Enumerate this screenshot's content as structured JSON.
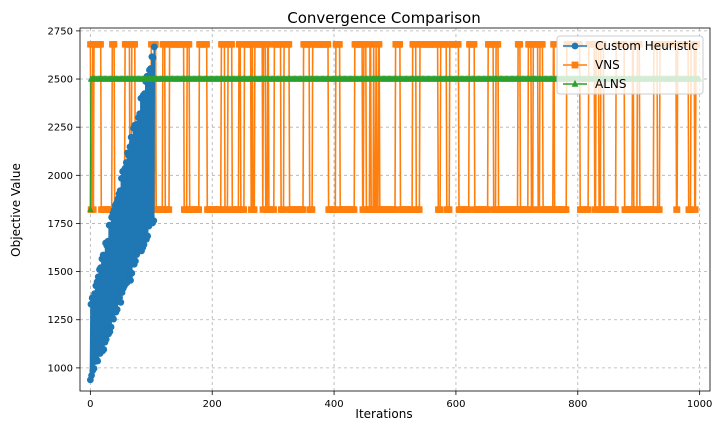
{
  "chart_data": {
    "type": "line",
    "title": "Convergence Comparison",
    "xlabel": "Iterations",
    "ylabel": "Objective Value",
    "xlim": [
      -17,
      1017
    ],
    "ylim": [
      880,
      2765
    ],
    "xticks": [
      0,
      200,
      400,
      600,
      800,
      1000
    ],
    "yticks": [
      1000,
      1250,
      1500,
      1750,
      2000,
      2250,
      2500,
      2750
    ],
    "grid": true,
    "legend": "top-right",
    "series": [
      {
        "name": "Custom Heuristic",
        "color": "#1f77b4",
        "marker": "circle",
        "pattern": "oscillating between a rising lower bound and a rising upper bound over iterations 0-105",
        "x_range": [
          0,
          105
        ],
        "lower_start": 915,
        "lower_end": 1770,
        "upper_start": 1350,
        "upper_end": 2680
      },
      {
        "name": "VNS",
        "color": "#ff7f0e",
        "marker": "square",
        "pattern": "switching between two levels across iterations 0-995",
        "x_range": [
          0,
          995
        ],
        "high": 2680,
        "low": 1822
      },
      {
        "name": "ALNS",
        "color": "#2ca02c",
        "marker": "triangle",
        "pattern": "starts at 1822, jumps to 2500 and stays flat",
        "x": [
          0,
          1,
          1000
        ],
        "y": [
          1822,
          2500,
          2500
        ]
      }
    ]
  }
}
